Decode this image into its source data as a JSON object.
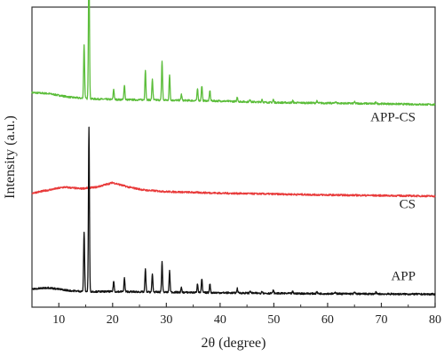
{
  "chart_data": {
    "type": "line",
    "xlabel": "2θ (degree)",
    "ylabel": "Intensity (a.u.)",
    "xlim": [
      5,
      80
    ],
    "x_ticks": [
      10,
      20,
      30,
      40,
      50,
      60,
      70,
      80
    ],
    "y_ticks_shown": false,
    "grid": false,
    "legend": "labels placed beside each curve on the right",
    "series": [
      {
        "name": "APP-CS",
        "color": "#5bbd3a",
        "offset": 0.66,
        "background": [
          [
            5,
            0.055
          ],
          [
            8,
            0.052
          ],
          [
            12,
            0.04
          ],
          [
            15,
            0.035
          ],
          [
            20,
            0.032
          ],
          [
            30,
            0.03
          ],
          [
            40,
            0.027
          ],
          [
            50,
            0.022
          ],
          [
            60,
            0.02
          ],
          [
            70,
            0.018
          ],
          [
            80,
            0.015
          ]
        ],
        "peaks": [
          [
            14.7,
            0.18
          ],
          [
            15.6,
            0.48
          ],
          [
            20.2,
            0.035
          ],
          [
            22.2,
            0.05
          ],
          [
            26.1,
            0.1
          ],
          [
            27.4,
            0.07
          ],
          [
            29.2,
            0.13
          ],
          [
            30.6,
            0.085
          ],
          [
            32.8,
            0.02
          ],
          [
            35.8,
            0.04
          ],
          [
            36.6,
            0.05
          ],
          [
            38.1,
            0.035
          ],
          [
            43.2,
            0.015
          ],
          [
            45.6,
            0.008
          ],
          [
            47.8,
            0.01
          ],
          [
            49.9,
            0.01
          ],
          [
            53.5,
            0.007
          ],
          [
            58.0,
            0.006
          ],
          [
            61.5,
            0.006
          ],
          [
            65.0,
            0.005
          ],
          [
            69.0,
            0.005
          ]
        ]
      },
      {
        "name": "CS",
        "color": "#e83a3a",
        "offset": 0.38,
        "background": [
          [
            5,
            0.0
          ],
          [
            8,
            0.01
          ],
          [
            11,
            0.02
          ],
          [
            14,
            0.015
          ],
          [
            17,
            0.02
          ],
          [
            20,
            0.035
          ],
          [
            23,
            0.02
          ],
          [
            26,
            0.01
          ],
          [
            30,
            0.005
          ],
          [
            40,
            0.0
          ],
          [
            50,
            -0.003
          ],
          [
            60,
            -0.006
          ],
          [
            70,
            -0.008
          ],
          [
            80,
            -0.01
          ]
        ],
        "peaks": []
      },
      {
        "name": "APP",
        "color": "#111111",
        "offset": 0.04,
        "background": [
          [
            5,
            0.02
          ],
          [
            8,
            0.025
          ],
          [
            12,
            0.015
          ],
          [
            15,
            0.012
          ],
          [
            20,
            0.012
          ],
          [
            30,
            0.01
          ],
          [
            40,
            0.008
          ],
          [
            50,
            0.006
          ],
          [
            60,
            0.005
          ],
          [
            70,
            0.004
          ],
          [
            80,
            0.003
          ]
        ],
        "peaks": [
          [
            14.7,
            0.2
          ],
          [
            15.6,
            0.55
          ],
          [
            20.2,
            0.035
          ],
          [
            22.2,
            0.045
          ],
          [
            26.1,
            0.075
          ],
          [
            27.4,
            0.06
          ],
          [
            29.2,
            0.1
          ],
          [
            30.6,
            0.07
          ],
          [
            32.8,
            0.015
          ],
          [
            35.8,
            0.03
          ],
          [
            36.6,
            0.045
          ],
          [
            38.1,
            0.03
          ],
          [
            43.2,
            0.015
          ],
          [
            45.6,
            0.008
          ],
          [
            47.8,
            0.008
          ],
          [
            49.9,
            0.01
          ],
          [
            53.5,
            0.006
          ],
          [
            58.0,
            0.006
          ],
          [
            61.5,
            0.006
          ],
          [
            65.0,
            0.005
          ],
          [
            69.0,
            0.005
          ]
        ]
      }
    ]
  }
}
